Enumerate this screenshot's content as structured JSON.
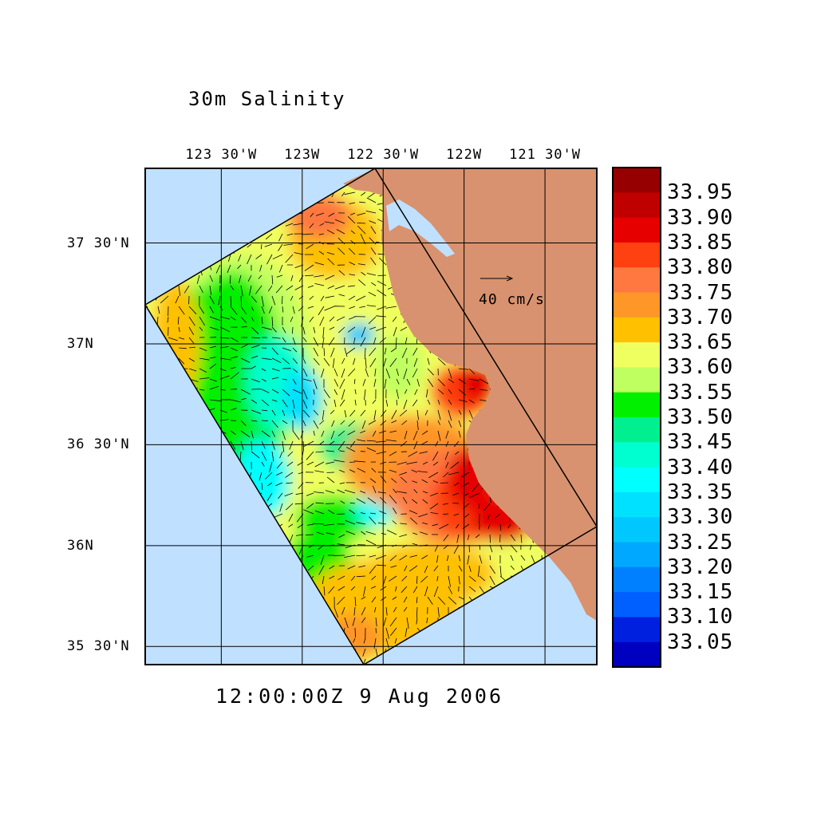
{
  "title": "30m Salinity",
  "time_label": "12:00:00Z   9 Aug 2006",
  "vector_scale_label": "40 cm/s",
  "colors": {
    "ocean": "#c0e0ff",
    "land": "#d9926f",
    "frame": "#000000"
  },
  "chart_data": {
    "type": "heatmap",
    "title": "30m Salinity",
    "x_ticks": [
      "123 30'W",
      "123W",
      "122 30'W",
      "122W",
      "121 30'W"
    ],
    "x_tick_values": [
      -123.5,
      -123.0,
      -122.5,
      -122.0,
      -121.5
    ],
    "y_ticks": [
      "37 30'N",
      "37N",
      "36 30'N",
      "36N",
      "35 30'N"
    ],
    "y_tick_values": [
      37.5,
      37.0,
      36.5,
      36.0,
      35.5
    ],
    "xlim": [
      -123.97,
      -121.18
    ],
    "ylim": [
      35.41,
      37.87
    ],
    "grid": true,
    "overlay": "velocity vectors",
    "colorbar": {
      "labels": [
        "33.95",
        "33.90",
        "33.85",
        "33.80",
        "33.75",
        "33.70",
        "33.65",
        "33.60",
        "33.55",
        "33.50",
        "33.45",
        "33.40",
        "33.35",
        "33.30",
        "33.25",
        "33.20",
        "33.15",
        "33.10",
        "33.05"
      ],
      "colors": [
        "#960000",
        "#c00000",
        "#e60000",
        "#ff4010",
        "#ff7840",
        "#ff9628",
        "#ffc000",
        "#f0ff60",
        "#c0ff60",
        "#00f000",
        "#00f090",
        "#00ffd0",
        "#00ffff",
        "#00e0ff",
        "#00c8ff",
        "#00a8ff",
        "#0080ff",
        "#0060ff",
        "#0020e0",
        "#0000c0"
      ]
    }
  }
}
